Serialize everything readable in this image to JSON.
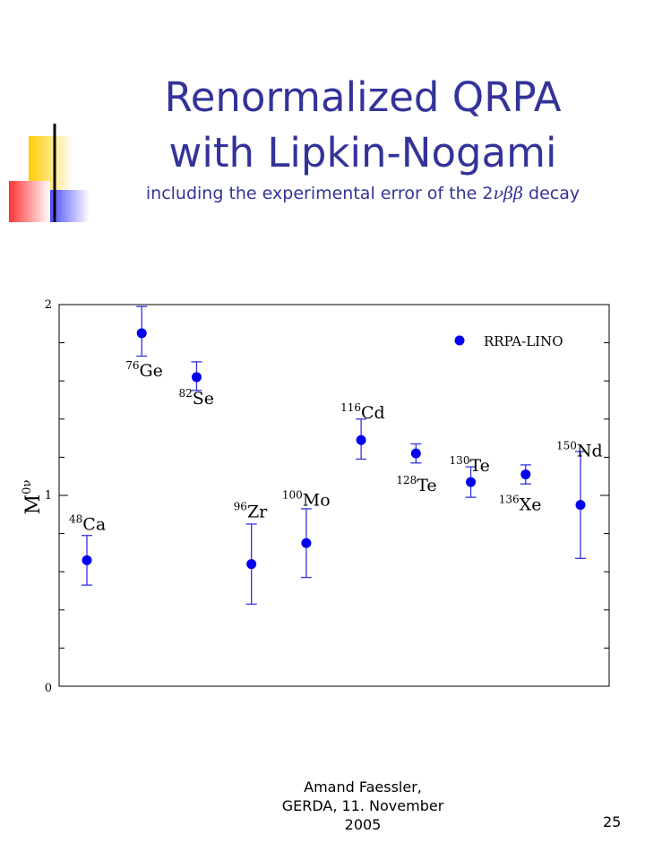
{
  "slide": {
    "title_line1": "Renormalized QRPA",
    "title_line2": "with Lipkin-Nogami",
    "subtitle_prefix": "including the experimental error of the 2",
    "subtitle_symbols": "νββ",
    "subtitle_suffix": " decay",
    "footer_line1": "Amand Faessler,",
    "footer_line2": "GERDA, 11. November",
    "footer_line3": "2005",
    "page_number": "25"
  },
  "colors": {
    "title": "#333399",
    "marker": "#0000ee",
    "errorbar": "#3333dd",
    "logo_yellow": "#ffcc00",
    "logo_red": "#ff3333",
    "logo_blue": "#3333ff"
  },
  "chart_data": {
    "type": "scatter",
    "ylabel_main": "M",
    "ylabel_sup": "0ν",
    "ylim": [
      0,
      2
    ],
    "y_tick_labels": [
      "0",
      "1",
      "2"
    ],
    "legend": {
      "label": "RRPA-LINO",
      "position": "top-right"
    },
    "series": [
      {
        "name": "RRPA-LINO",
        "points": [
          {
            "mass": "48",
            "element": "Ca",
            "value": 0.66,
            "err_low": 0.53,
            "err_high": 0.79
          },
          {
            "mass": "76",
            "element": "Ge",
            "value": 1.85,
            "err_low": 1.73,
            "err_high": 1.99
          },
          {
            "mass": "82",
            "element": "Se",
            "value": 1.62,
            "err_low": 1.55,
            "err_high": 1.7
          },
          {
            "mass": "96",
            "element": "Zr",
            "value": 0.64,
            "err_low": 0.43,
            "err_high": 0.85
          },
          {
            "mass": "100",
            "element": "Mo",
            "value": 0.75,
            "err_low": 0.57,
            "err_high": 0.93
          },
          {
            "mass": "116",
            "element": "Cd",
            "value": 1.29,
            "err_low": 1.19,
            "err_high": 1.4
          },
          {
            "mass": "128",
            "element": "Te",
            "value": 1.22,
            "err_low": 1.17,
            "err_high": 1.27
          },
          {
            "mass": "130",
            "element": "Te",
            "value": 1.07,
            "err_low": 0.99,
            "err_high": 1.15
          },
          {
            "mass": "136",
            "element": "Xe",
            "value": 1.11,
            "err_low": 1.06,
            "err_high": 1.16
          },
          {
            "mass": "150",
            "element": "Nd",
            "value": 0.95,
            "err_low": 0.67,
            "err_high": 1.23
          }
        ]
      }
    ]
  }
}
